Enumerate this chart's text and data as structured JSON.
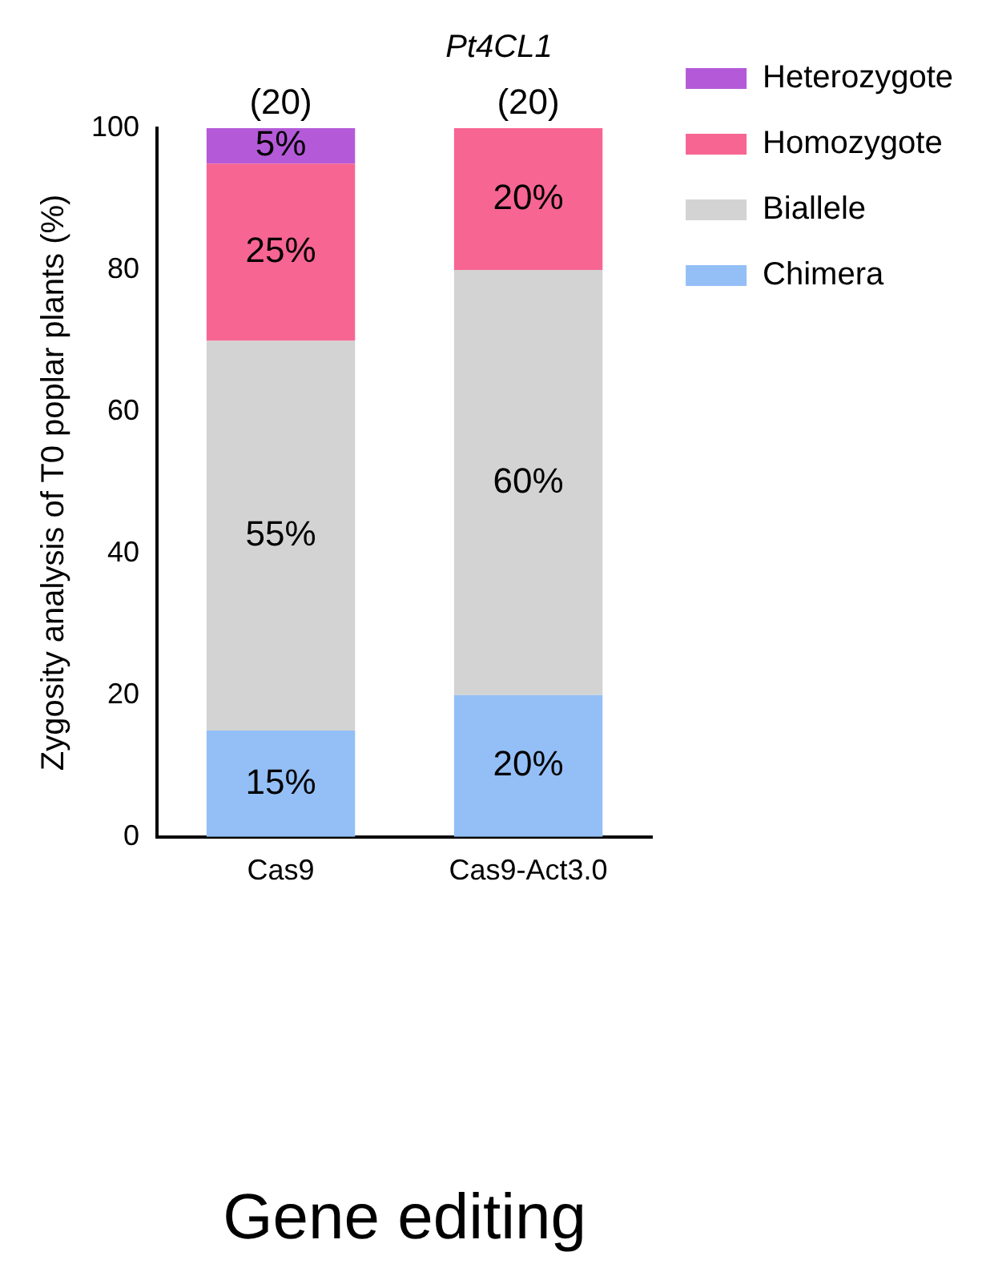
{
  "chart_data": {
    "type": "bar",
    "stacked": true,
    "title": "Pt4CL1",
    "xlabel": "Gene editing",
    "ylabel": "Zygosity analysis of T0 poplar plants (%)",
    "categories": [
      "Cas9",
      "Cas9-Act3.0"
    ],
    "series": [
      {
        "name": "Chimera",
        "color": "#94bff6",
        "values": [
          15,
          20
        ],
        "value_labels": [
          "15%",
          "20%"
        ]
      },
      {
        "name": "Biallele",
        "color": "#d3d3d3",
        "values": [
          55,
          60
        ],
        "value_labels": [
          "55%",
          "60%"
        ]
      },
      {
        "name": "Homozygote",
        "color": "#f76593",
        "values": [
          25,
          20
        ],
        "value_labels": [
          "25%",
          "20%"
        ]
      },
      {
        "name": "Heterozygote",
        "color": "#b45ad8",
        "values": [
          5,
          null
        ],
        "value_labels": [
          "5%",
          null
        ]
      }
    ],
    "annotations": [
      {
        "text": "(20)",
        "x": "Cas9",
        "y": 100
      },
      {
        "text": "(20)",
        "x": "Cas9-Act3.0",
        "y": 100
      }
    ],
    "ylim": [
      0,
      100
    ],
    "yticks": [
      0,
      20,
      40,
      60,
      80,
      100
    ],
    "grid": false,
    "legend": "top right"
  }
}
